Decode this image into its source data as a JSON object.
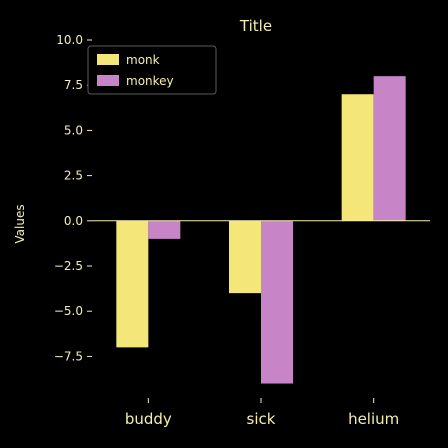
{
  "chart_data": {
    "type": "bar",
    "title": "Title",
    "xlabel": "",
    "ylabel": "Values",
    "categories": [
      "buddy",
      "sick",
      "helium"
    ],
    "series": [
      {
        "name": "monk",
        "color": "#f5e67a",
        "values": [
          -7,
          -4,
          7
        ]
      },
      {
        "name": "monkey",
        "color": "#c785c8",
        "values": [
          -1,
          -9,
          8
        ]
      }
    ],
    "ylim": [
      -9.8,
      10
    ],
    "yticks": [
      -7.5,
      -5.0,
      -2.5,
      0.0,
      2.5,
      5.0,
      7.5,
      10.0
    ],
    "ytick_labels": [
      "−7.5",
      "−5.0",
      "−2.5",
      "0.0",
      "2.5",
      "5.0",
      "7.5",
      "10.0"
    ],
    "grid": false,
    "legend_position": "top-left",
    "background": "#000000",
    "text_color": "#f5eeb0"
  }
}
